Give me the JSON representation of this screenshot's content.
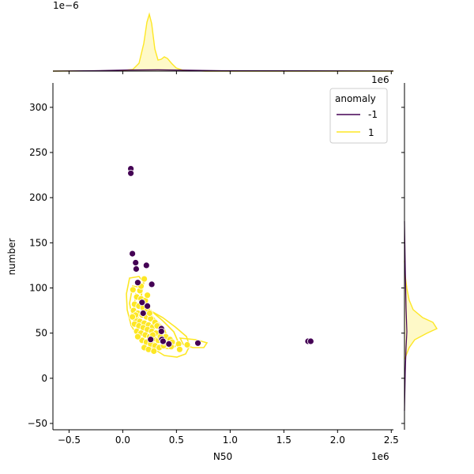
{
  "chart_data": {
    "type": "scatter",
    "subtype": "jointplot with kde contours and marginal densities",
    "xlabel": "N50",
    "ylabel": "number",
    "x_offset_label": "1e6",
    "y_marg_offset_label": "1e6",
    "top_marg_offset_label": "1e−6",
    "xlim": [
      -650000,
      2520000
    ],
    "ylim": [
      -57,
      327
    ],
    "x_ticks": [
      -500000,
      0,
      500000,
      1000000,
      1500000,
      2000000,
      2500000
    ],
    "x_tick_labels": [
      "−0.5",
      "0.0",
      "0.5",
      "1.0",
      "1.5",
      "2.0",
      "2.5"
    ],
    "y_ticks": [
      -50,
      0,
      50,
      100,
      150,
      200,
      250,
      300
    ],
    "y_tick_labels": [
      "−50",
      "0",
      "50",
      "100",
      "150",
      "200",
      "250",
      "300"
    ],
    "grid": false,
    "legend": {
      "title": "anomaly",
      "placement": "top-right",
      "entries": [
        {
          "label": "-1",
          "color": "#440154"
        },
        {
          "label": "1",
          "color": "#fde725"
        }
      ]
    },
    "series": [
      {
        "name": "-1",
        "color": "#440154",
        "points": [
          [
            75000,
            232
          ],
          [
            75000,
            227
          ],
          [
            90000,
            138
          ],
          [
            120000,
            128
          ],
          [
            125000,
            121
          ],
          [
            220000,
            125
          ],
          [
            140000,
            106
          ],
          [
            270000,
            104
          ],
          [
            180000,
            84
          ],
          [
            230000,
            80
          ],
          [
            190000,
            72
          ],
          [
            360000,
            55
          ],
          [
            360000,
            52
          ],
          [
            260000,
            43
          ],
          [
            365000,
            43
          ],
          [
            375000,
            41
          ],
          [
            430000,
            38
          ],
          [
            700000,
            39
          ],
          [
            1725000,
            41
          ],
          [
            1750000,
            41
          ]
        ]
      },
      {
        "name": "1",
        "color": "#fde725",
        "points": [
          [
            95000,
            98
          ],
          [
            160000,
            97
          ],
          [
            200000,
            110
          ],
          [
            130000,
            90
          ],
          [
            170000,
            88
          ],
          [
            210000,
            86
          ],
          [
            110000,
            82
          ],
          [
            150000,
            80
          ],
          [
            190000,
            78
          ],
          [
            230000,
            76
          ],
          [
            100000,
            75
          ],
          [
            140000,
            72
          ],
          [
            180000,
            70
          ],
          [
            220000,
            68
          ],
          [
            260000,
            66
          ],
          [
            120000,
            65
          ],
          [
            160000,
            63
          ],
          [
            200000,
            61
          ],
          [
            240000,
            59
          ],
          [
            280000,
            57
          ],
          [
            110000,
            60
          ],
          [
            150000,
            58
          ],
          [
            190000,
            56
          ],
          [
            230000,
            54
          ],
          [
            270000,
            52
          ],
          [
            310000,
            50
          ],
          [
            130000,
            52
          ],
          [
            170000,
            50
          ],
          [
            210000,
            48
          ],
          [
            250000,
            46
          ],
          [
            290000,
            44
          ],
          [
            330000,
            42
          ],
          [
            180000,
            42
          ],
          [
            220000,
            40
          ],
          [
            260000,
            38
          ],
          [
            300000,
            36
          ],
          [
            340000,
            34
          ],
          [
            400000,
            46
          ],
          [
            440000,
            43
          ],
          [
            460000,
            40
          ],
          [
            420000,
            38
          ],
          [
            380000,
            36
          ],
          [
            520000,
            38
          ],
          [
            530000,
            32
          ],
          [
            600000,
            37
          ],
          [
            200000,
            34
          ],
          [
            240000,
            32
          ],
          [
            290000,
            30
          ],
          [
            140000,
            46
          ],
          [
            120000,
            70
          ],
          [
            300000,
            62
          ],
          [
            320000,
            58
          ],
          [
            90000,
            68
          ],
          [
            250000,
            72
          ],
          [
            170000,
            102
          ],
          [
            230000,
            92
          ],
          [
            280000,
            48
          ],
          [
            350000,
            46
          ],
          [
            390000,
            40
          ],
          [
            450000,
            35
          ]
        ]
      }
    ]
  }
}
